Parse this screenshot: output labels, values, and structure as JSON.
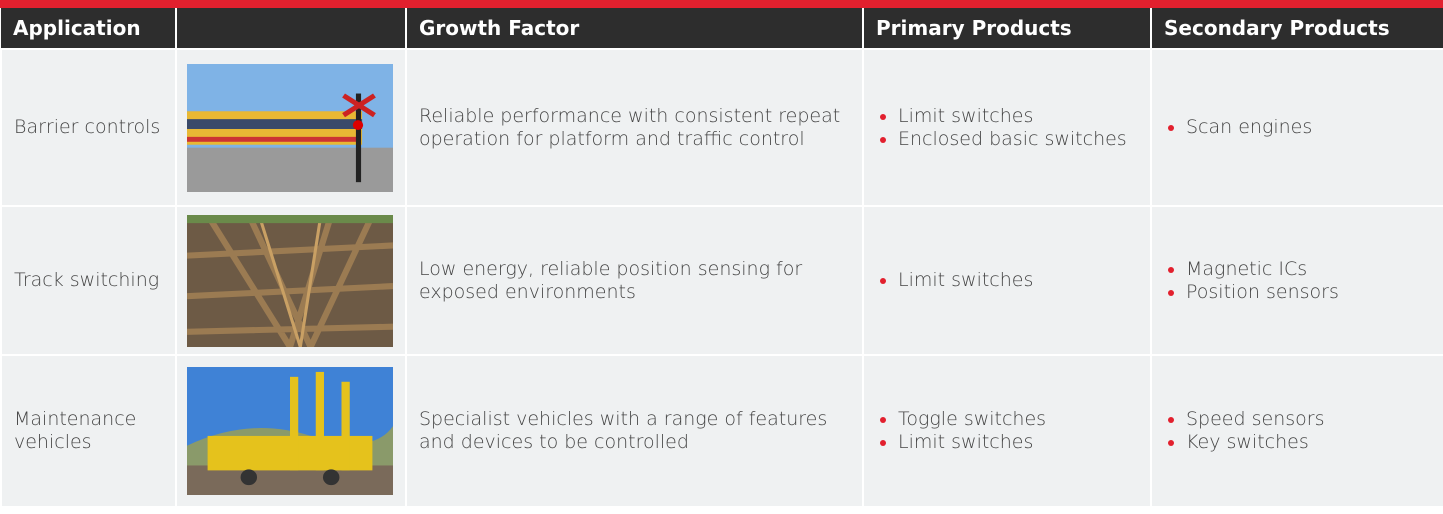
{
  "header": {
    "application": "Application",
    "growth_factor": "Growth Factor",
    "primary_products": "Primary Products",
    "secondary_products": "Secondary Products"
  },
  "table": {
    "rows": [
      {
        "application": "Barrier controls",
        "growth_factor": "Reliable performance with consistent repeat operation for platform and traffic control",
        "primary_products": [
          "Limit switches",
          "Enclosed basic switches"
        ],
        "secondary_products": [
          "Scan engines"
        ]
      },
      {
        "application": "Track switching",
        "growth_factor": "Low energy, reliable position sensing for exposed environments",
        "primary_products": [
          "Limit switches"
        ],
        "secondary_products": [
          "Magnetic ICs",
          "Position sensors"
        ]
      },
      {
        "application": "Maintenance vehicles",
        "growth_factor": "Specialist vehicles with a range of features and devices to be controlled",
        "primary_products": [
          "Toggle switches",
          "Limit switches"
        ],
        "secondary_products": [
          "Speed sensors",
          "Key switches"
        ]
      }
    ]
  }
}
